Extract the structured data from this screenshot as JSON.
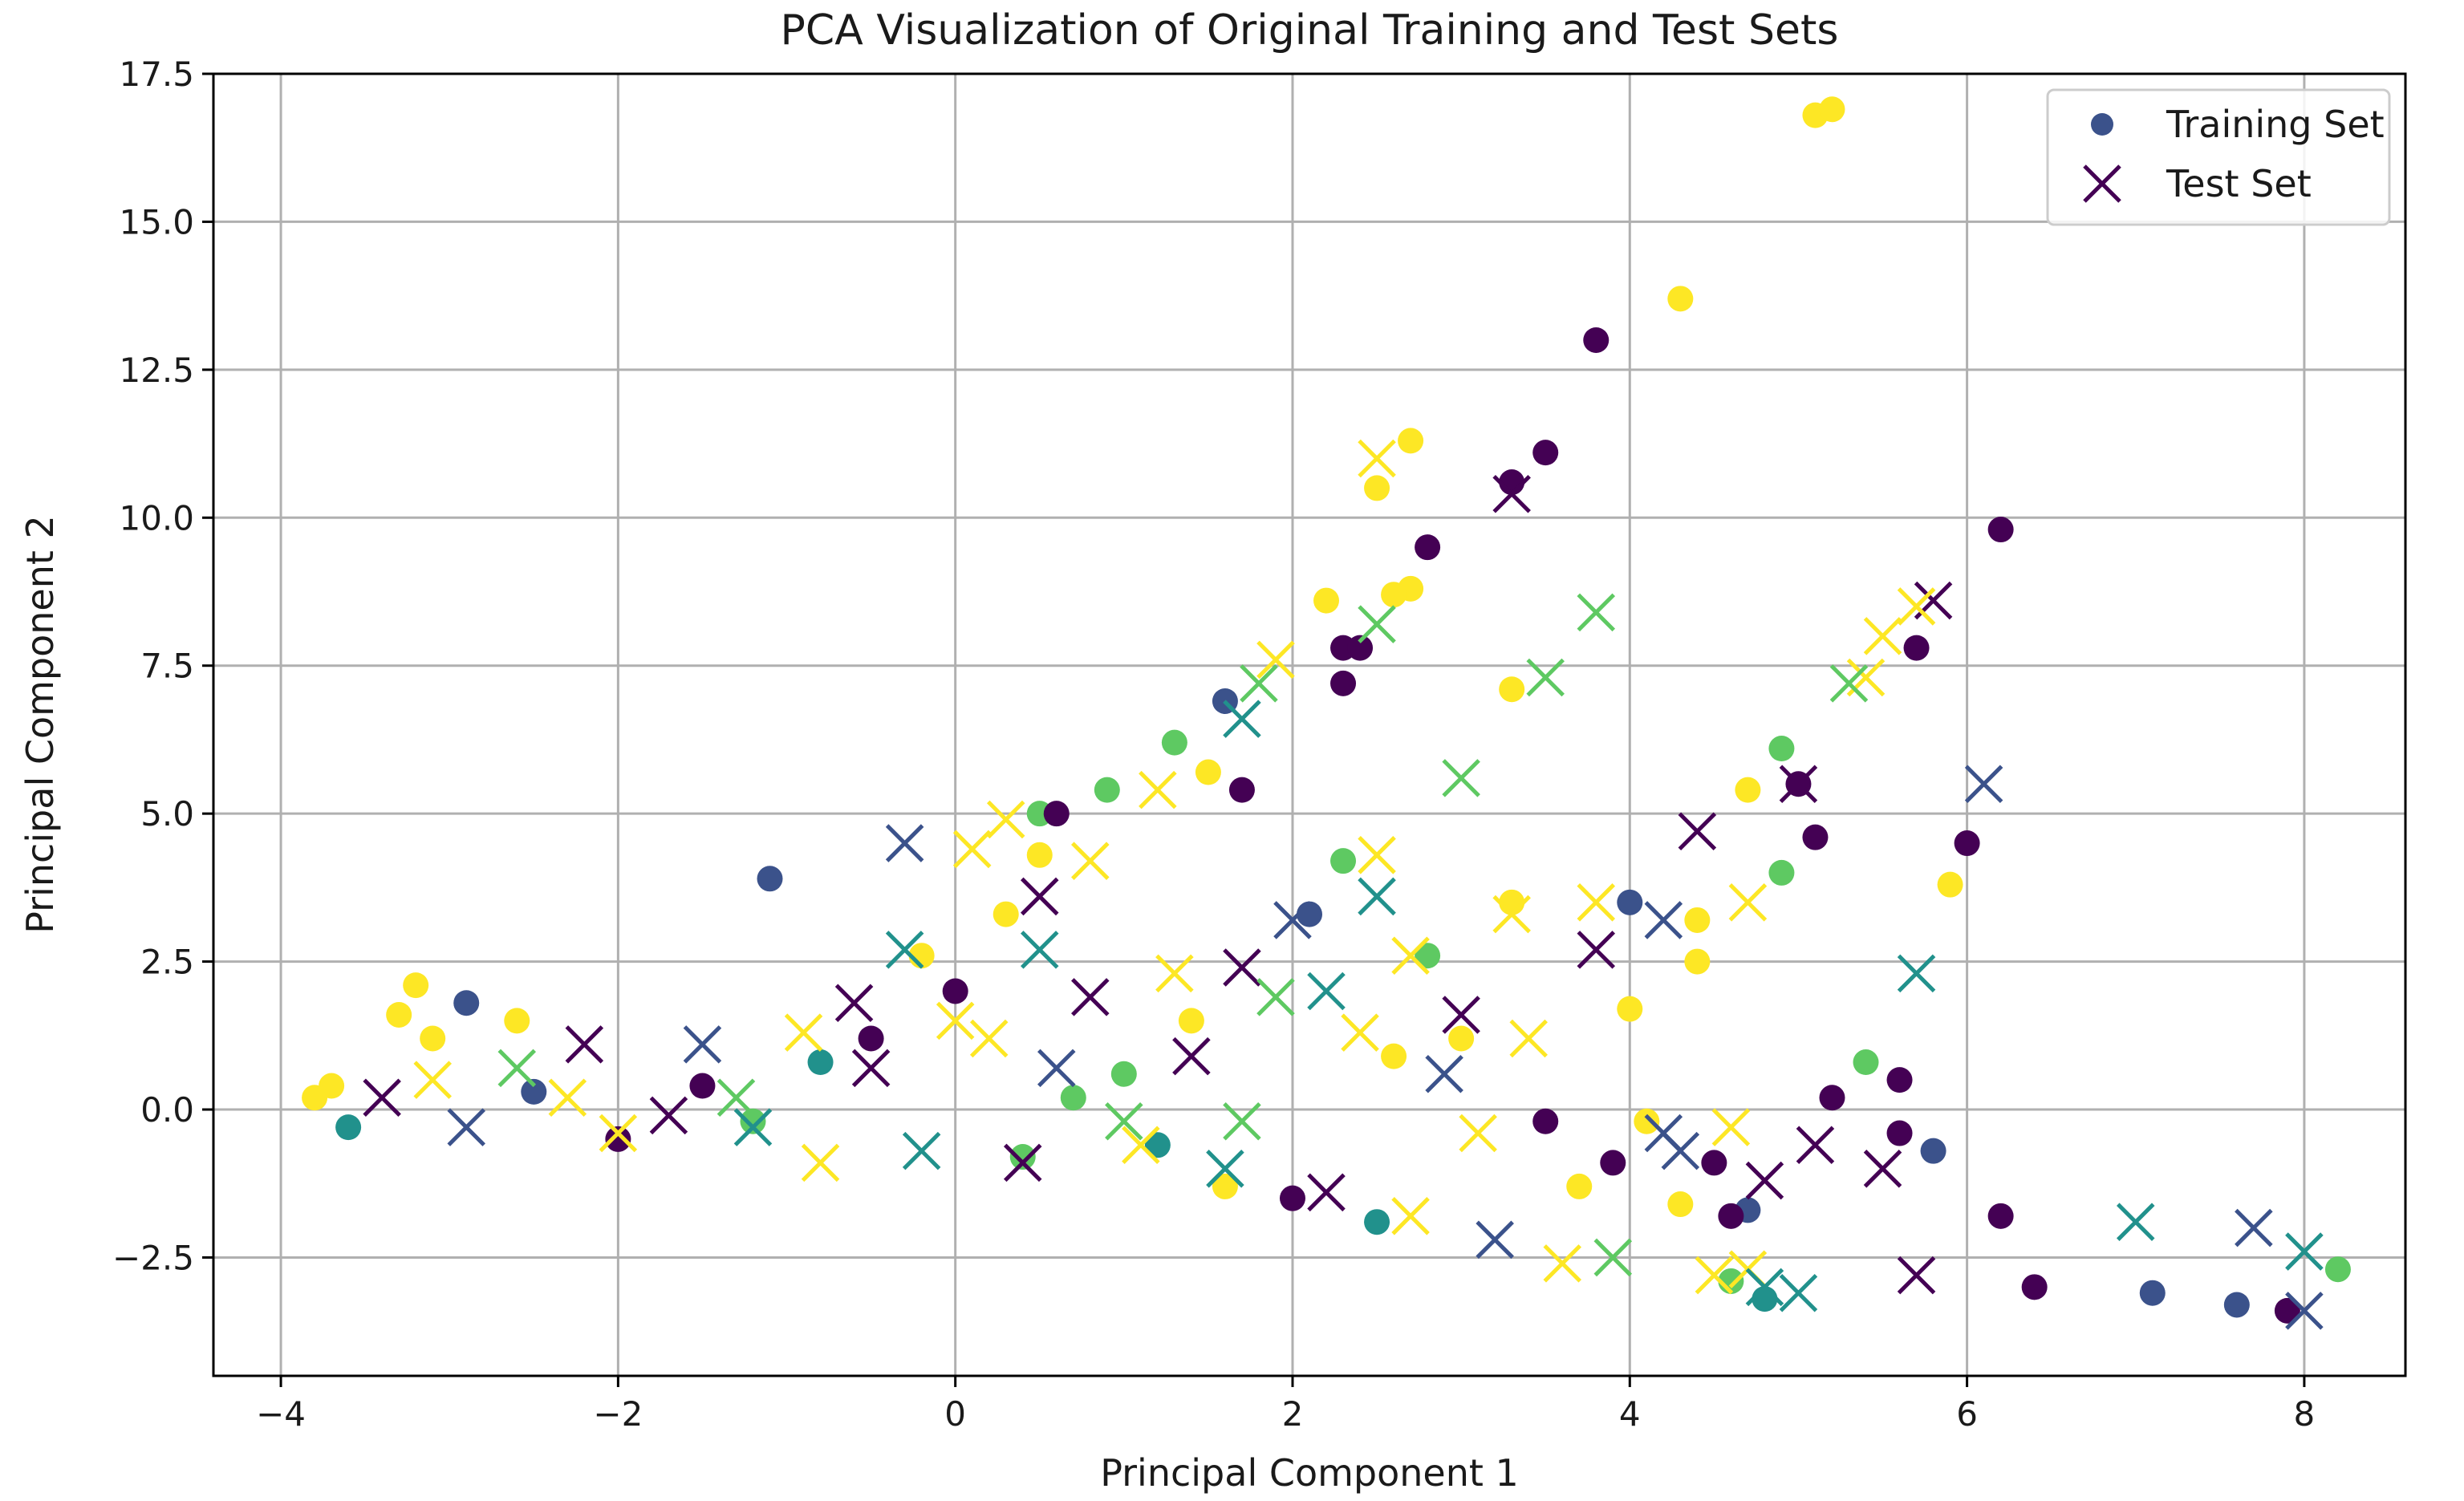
{
  "chart_data": {
    "type": "scatter",
    "title": "PCA Visualization of Original Training and Test Sets",
    "xlabel": "Principal Component 1",
    "ylabel": "Principal Component 2",
    "xlim": [
      -4.4,
      8.6
    ],
    "ylim": [
      -4.5,
      17.5
    ],
    "xticks": [
      -4,
      -2,
      0,
      2,
      4,
      6,
      8
    ],
    "xtick_labels": [
      "−4",
      "−2",
      "0",
      "2",
      "4",
      "6",
      "8"
    ],
    "yticks": [
      -2.5,
      0.0,
      2.5,
      5.0,
      7.5,
      10.0,
      12.5,
      15.0,
      17.5
    ],
    "ytick_labels": [
      "−2.5",
      "0.0",
      "2.5",
      "5.0",
      "7.5",
      "10.0",
      "12.5",
      "15.0",
      "17.5"
    ],
    "grid": true,
    "legend": {
      "location": "top-right",
      "entries": [
        {
          "label": "Training Set",
          "marker": "circle",
          "color": "#3b528b"
        },
        {
          "label": "Test Set",
          "marker": "x",
          "color": "#440154"
        }
      ]
    },
    "colormap": "viridis",
    "class_colors": [
      "#440154",
      "#3b528b",
      "#21918c",
      "#5ec962",
      "#fde725"
    ],
    "series": [
      {
        "name": "Training Set",
        "marker": "circle",
        "points": [
          [
            5.1,
            16.8,
            4
          ],
          [
            5.2,
            16.9,
            4
          ],
          [
            4.3,
            13.7,
            4
          ],
          [
            3.8,
            13.0,
            0
          ],
          [
            3.5,
            11.1,
            0
          ],
          [
            3.3,
            10.6,
            0
          ],
          [
            2.7,
            11.3,
            4
          ],
          [
            2.5,
            10.5,
            4
          ],
          [
            2.8,
            9.5,
            0
          ],
          [
            2.7,
            8.8,
            4
          ],
          [
            2.6,
            8.7,
            4
          ],
          [
            2.2,
            8.6,
            4
          ],
          [
            6.2,
            9.8,
            0
          ],
          [
            5.7,
            7.8,
            0
          ],
          [
            3.3,
            7.1,
            4
          ],
          [
            2.3,
            7.8,
            0
          ],
          [
            2.4,
            7.8,
            0
          ],
          [
            2.3,
            7.2,
            0
          ],
          [
            1.6,
            6.9,
            1
          ],
          [
            1.3,
            6.2,
            3
          ],
          [
            0.9,
            5.4,
            3
          ],
          [
            1.5,
            5.7,
            4
          ],
          [
            1.7,
            5.4,
            0
          ],
          [
            0.5,
            5.0,
            3
          ],
          [
            0.6,
            5.0,
            0
          ],
          [
            0.5,
            4.3,
            4
          ],
          [
            4.9,
            6.1,
            3
          ],
          [
            4.7,
            5.4,
            4
          ],
          [
            5.0,
            5.5,
            0
          ],
          [
            5.1,
            4.6,
            0
          ],
          [
            6.0,
            4.5,
            0
          ],
          [
            5.9,
            3.8,
            4
          ],
          [
            4.9,
            4.0,
            3
          ],
          [
            -1.1,
            3.9,
            1
          ],
          [
            4.0,
            3.5,
            1
          ],
          [
            4.4,
            3.2,
            4
          ],
          [
            4.4,
            2.5,
            4
          ],
          [
            4.0,
            1.7,
            4
          ],
          [
            3.3,
            3.5,
            4
          ],
          [
            2.8,
            2.6,
            3
          ],
          [
            2.3,
            4.2,
            3
          ],
          [
            2.1,
            3.3,
            1
          ],
          [
            -3.2,
            2.1,
            4
          ],
          [
            -2.9,
            1.8,
            1
          ],
          [
            -3.3,
            1.6,
            4
          ],
          [
            -3.1,
            1.2,
            4
          ],
          [
            -2.6,
            1.5,
            4
          ],
          [
            -3.8,
            0.2,
            4
          ],
          [
            -3.7,
            0.4,
            4
          ],
          [
            -2.5,
            0.3,
            1
          ],
          [
            -3.6,
            -0.3,
            2
          ],
          [
            5.8,
            -0.7,
            1
          ],
          [
            5.4,
            0.8,
            3
          ],
          [
            5.6,
            0.5,
            0
          ],
          [
            5.2,
            0.2,
            0
          ],
          [
            5.6,
            -0.4,
            0
          ],
          [
            6.2,
            -1.8,
            0
          ],
          [
            6.4,
            -3.0,
            0
          ],
          [
            7.1,
            -3.1,
            1
          ],
          [
            7.6,
            -3.3,
            1
          ],
          [
            7.9,
            -3.4,
            0
          ],
          [
            8.2,
            -2.7,
            3
          ],
          [
            4.7,
            -1.7,
            1
          ],
          [
            4.6,
            -1.8,
            0
          ],
          [
            4.8,
            -3.2,
            2
          ],
          [
            4.6,
            -2.9,
            3
          ],
          [
            4.3,
            -1.6,
            4
          ],
          [
            3.9,
            -0.9,
            0
          ],
          [
            4.5,
            -0.9,
            0
          ],
          [
            4.1,
            -0.2,
            4
          ],
          [
            3.5,
            -0.2,
            0
          ],
          [
            3.7,
            -1.3,
            4
          ],
          [
            0.0,
            2.0,
            0
          ],
          [
            -0.2,
            2.6,
            4
          ],
          [
            0.3,
            3.3,
            4
          ],
          [
            -0.5,
            1.2,
            0
          ],
          [
            1.0,
            0.6,
            3
          ],
          [
            0.7,
            0.2,
            3
          ],
          [
            1.2,
            -0.6,
            2
          ],
          [
            1.6,
            -1.3,
            4
          ],
          [
            2.0,
            -1.5,
            0
          ],
          [
            2.5,
            -1.9,
            2
          ],
          [
            3.0,
            1.2,
            4
          ],
          [
            2.6,
            0.9,
            4
          ],
          [
            -1.5,
            0.4,
            0
          ],
          [
            -2.0,
            -0.5,
            0
          ],
          [
            -1.2,
            -0.2,
            3
          ],
          [
            -0.8,
            0.8,
            2
          ],
          [
            0.4,
            -0.8,
            3
          ],
          [
            1.4,
            1.5,
            4
          ]
        ]
      },
      {
        "name": "Test Set",
        "marker": "x",
        "points": [
          [
            2.5,
            11.0,
            4
          ],
          [
            3.3,
            10.4,
            0
          ],
          [
            5.8,
            8.6,
            0
          ],
          [
            5.7,
            8.5,
            4
          ],
          [
            5.5,
            8.0,
            4
          ],
          [
            5.4,
            7.3,
            4
          ],
          [
            5.3,
            7.2,
            3
          ],
          [
            3.8,
            8.4,
            3
          ],
          [
            3.5,
            7.3,
            3
          ],
          [
            2.5,
            8.2,
            3
          ],
          [
            1.9,
            7.6,
            4
          ],
          [
            1.7,
            6.6,
            2
          ],
          [
            1.8,
            7.2,
            3
          ],
          [
            1.2,
            5.4,
            4
          ],
          [
            3.0,
            5.6,
            3
          ],
          [
            5.0,
            5.5,
            0
          ],
          [
            6.1,
            5.5,
            1
          ],
          [
            4.4,
            4.7,
            0
          ],
          [
            0.3,
            4.9,
            4
          ],
          [
            0.1,
            4.4,
            4
          ],
          [
            -0.3,
            4.5,
            1
          ],
          [
            0.8,
            4.2,
            4
          ],
          [
            0.5,
            3.6,
            0
          ],
          [
            2.5,
            4.3,
            4
          ],
          [
            2.5,
            3.6,
            2
          ],
          [
            4.2,
            3.2,
            1
          ],
          [
            3.8,
            3.5,
            4
          ],
          [
            3.3,
            3.3,
            4
          ],
          [
            3.8,
            2.7,
            0
          ],
          [
            4.7,
            3.5,
            4
          ],
          [
            5.7,
            2.3,
            2
          ],
          [
            2.0,
            3.2,
            1
          ],
          [
            1.7,
            2.4,
            0
          ],
          [
            2.7,
            2.6,
            4
          ],
          [
            -2.2,
            1.1,
            0
          ],
          [
            -1.5,
            1.1,
            1
          ],
          [
            -2.6,
            0.7,
            3
          ],
          [
            -3.1,
            0.5,
            4
          ],
          [
            -3.4,
            0.2,
            0
          ],
          [
            -2.9,
            -0.3,
            1
          ],
          [
            -2.0,
            -0.4,
            4
          ],
          [
            -1.3,
            0.2,
            3
          ],
          [
            -0.6,
            1.8,
            0
          ],
          [
            -0.3,
            2.7,
            2
          ],
          [
            0.2,
            1.2,
            4
          ],
          [
            0.6,
            0.7,
            1
          ],
          [
            1.0,
            -0.2,
            3
          ],
          [
            1.4,
            0.9,
            0
          ],
          [
            1.9,
            1.9,
            3
          ],
          [
            2.4,
            1.3,
            4
          ],
          [
            3.0,
            1.6,
            0
          ],
          [
            3.4,
            1.2,
            4
          ],
          [
            2.9,
            0.6,
            1
          ],
          [
            3.1,
            -0.4,
            4
          ],
          [
            4.2,
            -0.4,
            1
          ],
          [
            4.3,
            -0.7,
            1
          ],
          [
            4.6,
            -0.3,
            4
          ],
          [
            5.1,
            -0.6,
            0
          ],
          [
            5.5,
            -1.0,
            0
          ],
          [
            4.8,
            -1.2,
            0
          ],
          [
            4.7,
            -2.7,
            4
          ],
          [
            4.8,
            -3.0,
            2
          ],
          [
            5.0,
            -3.1,
            2
          ],
          [
            4.5,
            -2.8,
            4
          ],
          [
            3.9,
            -2.5,
            3
          ],
          [
            3.6,
            -2.6,
            4
          ],
          [
            3.2,
            -2.2,
            1
          ],
          [
            2.7,
            -1.8,
            4
          ],
          [
            2.2,
            -1.4,
            0
          ],
          [
            1.6,
            -1.0,
            2
          ],
          [
            1.1,
            -0.6,
            4
          ],
          [
            0.4,
            -0.9,
            0
          ],
          [
            -0.2,
            -0.7,
            2
          ],
          [
            -0.8,
            -0.9,
            4
          ],
          [
            -1.2,
            -0.3,
            2
          ],
          [
            -0.5,
            0.7,
            0
          ],
          [
            0.0,
            1.5,
            4
          ],
          [
            0.5,
            2.7,
            2
          ],
          [
            7.0,
            -1.9,
            2
          ],
          [
            7.7,
            -2.0,
            1
          ],
          [
            8.0,
            -2.4,
            2
          ],
          [
            8.0,
            -3.4,
            1
          ],
          [
            5.7,
            -2.8,
            0
          ],
          [
            1.7,
            -0.2,
            3
          ],
          [
            -1.7,
            -0.1,
            0
          ],
          [
            -2.3,
            0.2,
            4
          ],
          [
            -0.9,
            1.3,
            4
          ],
          [
            0.8,
            1.9,
            0
          ],
          [
            1.3,
            2.3,
            4
          ],
          [
            2.2,
            2.0,
            2
          ]
        ]
      }
    ]
  }
}
